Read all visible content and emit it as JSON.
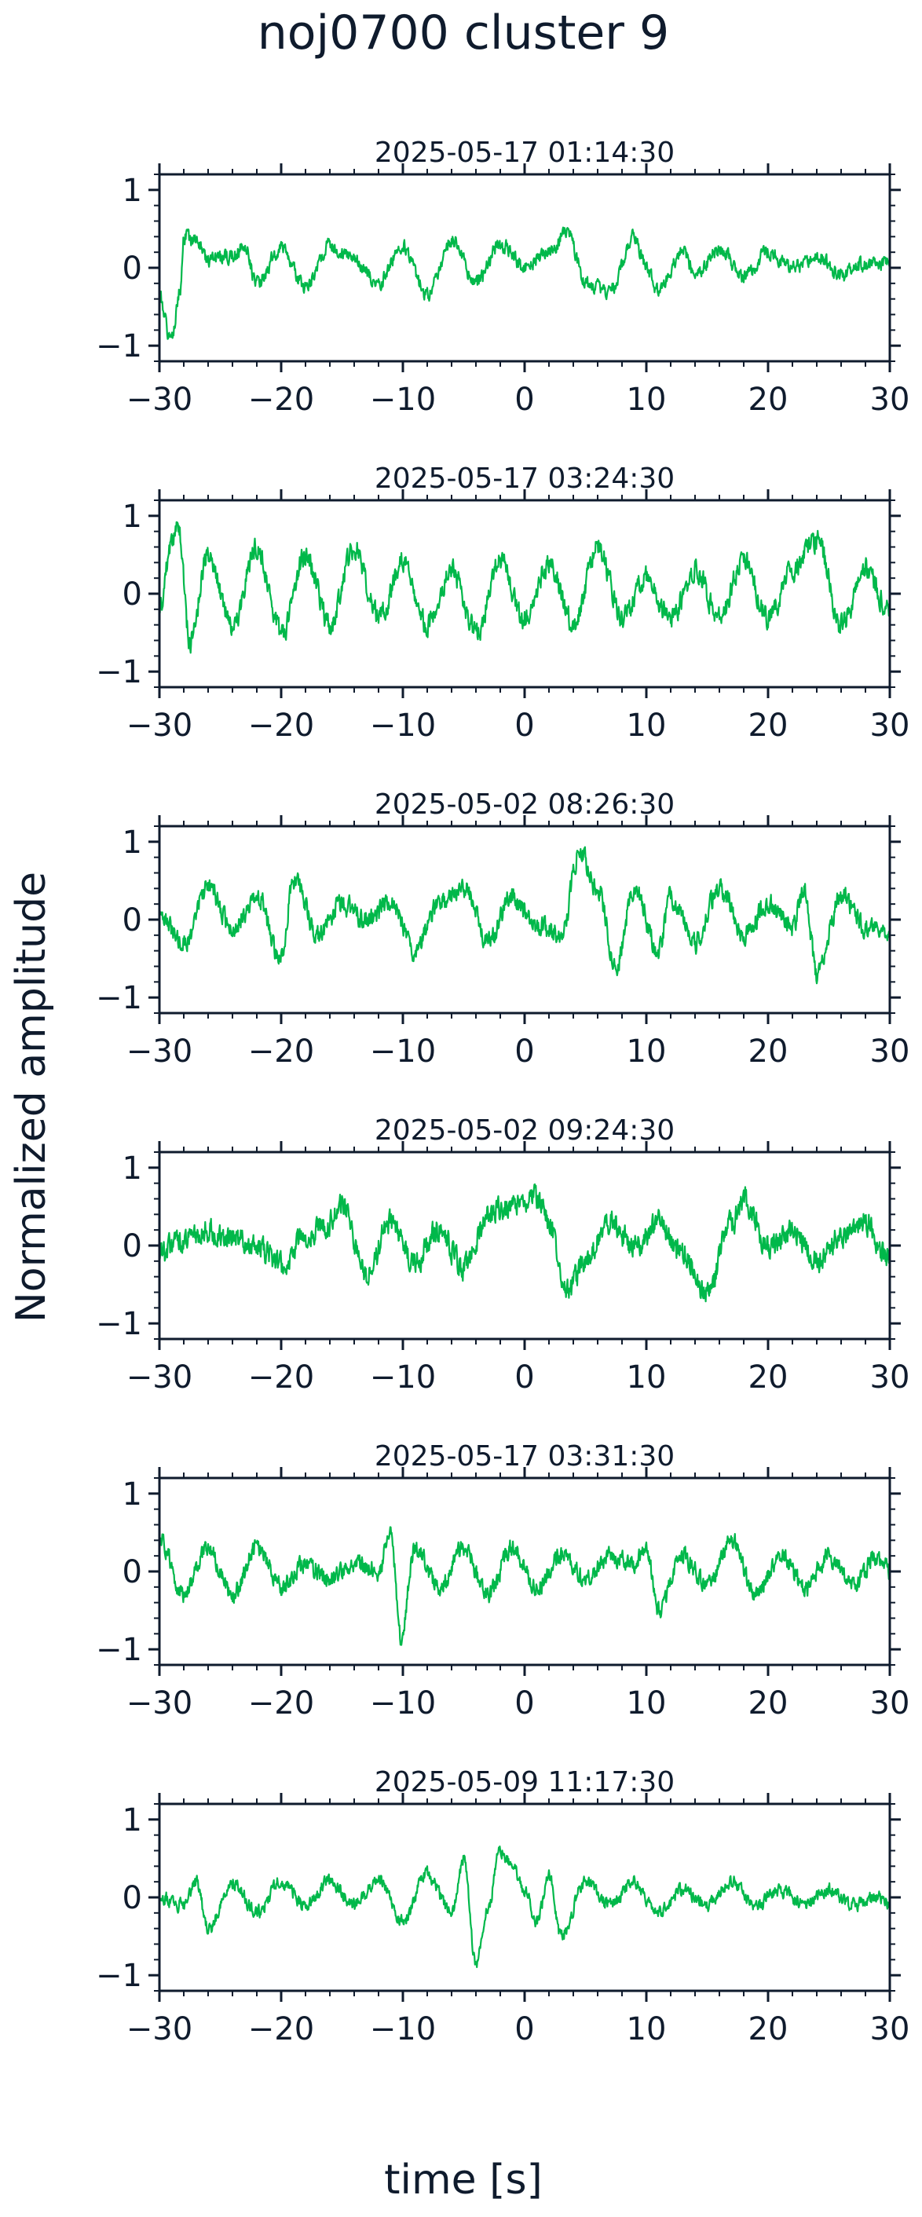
{
  "figure": {
    "title": "noj0700 cluster 9",
    "xlabel": "time [s]",
    "ylabel": "Normalized amplitude"
  },
  "colors": {
    "trace": "#00b84a",
    "axes": "#0f1b2d"
  },
  "chart_data": [
    {
      "type": "line",
      "title": "2025-05-17 01:14:30",
      "xlim": [
        -30,
        30
      ],
      "ylim": [
        -1.2,
        1.2
      ],
      "xticks": [
        -30,
        -20,
        -10,
        0,
        10,
        20,
        30
      ],
      "yticks": [
        -1,
        0,
        1
      ],
      "envelope": [
        [
          -30,
          -0.4
        ],
        [
          -29,
          -0.95
        ],
        [
          -28.3,
          -0.3
        ],
        [
          -28,
          0.4
        ],
        [
          -27,
          0.35
        ],
        [
          -26,
          0.1
        ],
        [
          -24,
          0.15
        ],
        [
          -23,
          0.3
        ],
        [
          -22,
          -0.2
        ],
        [
          -20,
          0.25
        ],
        [
          -18,
          -0.25
        ],
        [
          -16,
          0.3
        ],
        [
          -14,
          0.1
        ],
        [
          -12,
          -0.2
        ],
        [
          -10,
          0.3
        ],
        [
          -8,
          -0.35
        ],
        [
          -6,
          0.35
        ],
        [
          -4,
          -0.2
        ],
        [
          -2,
          0.3
        ],
        [
          0,
          0.0
        ],
        [
          2,
          0.2
        ],
        [
          3.5,
          0.45
        ],
        [
          5,
          -0.2
        ],
        [
          7,
          -0.3
        ],
        [
          9,
          0.4
        ],
        [
          10,
          0.0
        ],
        [
          11,
          -0.3
        ],
        [
          13,
          0.2
        ],
        [
          14,
          -0.1
        ],
        [
          16,
          0.25
        ],
        [
          18,
          -0.1
        ],
        [
          20,
          0.2
        ],
        [
          22,
          0.0
        ],
        [
          24,
          0.15
        ],
        [
          26,
          -0.1
        ],
        [
          28,
          0.05
        ],
        [
          30,
          0.05
        ]
      ],
      "noise": 0.14,
      "seed": 1
    },
    {
      "type": "line",
      "title": "2025-05-17 03:24:30",
      "xlim": [
        -30,
        30
      ],
      "ylim": [
        -1.2,
        1.2
      ],
      "xticks": [
        -30,
        -20,
        -10,
        0,
        10,
        20,
        30
      ],
      "yticks": [
        -1,
        0,
        1
      ],
      "envelope": [
        [
          -30,
          -0.2
        ],
        [
          -29,
          0.6
        ],
        [
          -28.5,
          0.9
        ],
        [
          -27.5,
          -0.6
        ],
        [
          -26,
          0.5
        ],
        [
          -24,
          -0.4
        ],
        [
          -22,
          0.6
        ],
        [
          -20,
          -0.5
        ],
        [
          -18,
          0.5
        ],
        [
          -16,
          -0.4
        ],
        [
          -14,
          0.6
        ],
        [
          -12,
          -0.3
        ],
        [
          -10,
          0.4
        ],
        [
          -8,
          -0.4
        ],
        [
          -6,
          0.3
        ],
        [
          -4,
          -0.5
        ],
        [
          -2,
          0.4
        ],
        [
          0,
          -0.3
        ],
        [
          2,
          0.4
        ],
        [
          4,
          -0.4
        ],
        [
          6,
          0.6
        ],
        [
          8,
          -0.3
        ],
        [
          10,
          0.2
        ],
        [
          12,
          -0.3
        ],
        [
          14,
          0.3
        ],
        [
          16,
          -0.3
        ],
        [
          18,
          0.4
        ],
        [
          20,
          -0.3
        ],
        [
          22,
          0.3
        ],
        [
          24,
          0.7
        ],
        [
          26,
          -0.4
        ],
        [
          28,
          0.3
        ],
        [
          30,
          -0.2
        ]
      ],
      "noise": 0.22,
      "seed": 2
    },
    {
      "type": "line",
      "title": "2025-05-02 08:26:30",
      "xlim": [
        -30,
        30
      ],
      "ylim": [
        -1.2,
        1.2
      ],
      "xticks": [
        -30,
        -20,
        -10,
        0,
        10,
        20,
        30
      ],
      "yticks": [
        -1,
        0,
        1
      ],
      "envelope": [
        [
          -30,
          0.0
        ],
        [
          -28,
          -0.3
        ],
        [
          -26,
          0.4
        ],
        [
          -24,
          -0.1
        ],
        [
          -22,
          0.3
        ],
        [
          -20,
          -0.5
        ],
        [
          -19,
          0.5
        ],
        [
          -17,
          -0.2
        ],
        [
          -15,
          0.2
        ],
        [
          -13,
          0.0
        ],
        [
          -11,
          0.2
        ],
        [
          -9,
          -0.4
        ],
        [
          -7,
          0.2
        ],
        [
          -5,
          0.4
        ],
        [
          -3,
          -0.3
        ],
        [
          -1,
          0.3
        ],
        [
          1,
          -0.1
        ],
        [
          3,
          -0.2
        ],
        [
          4.5,
          0.85
        ],
        [
          6,
          0.4
        ],
        [
          7.5,
          -0.6
        ],
        [
          9,
          0.4
        ],
        [
          11,
          -0.4
        ],
        [
          12,
          0.3
        ],
        [
          14,
          -0.3
        ],
        [
          16,
          0.4
        ],
        [
          18,
          -0.2
        ],
        [
          20,
          0.2
        ],
        [
          22,
          -0.1
        ],
        [
          23,
          0.4
        ],
        [
          24,
          -0.7
        ],
        [
          26,
          0.3
        ],
        [
          28,
          -0.1
        ],
        [
          30,
          -0.2
        ]
      ],
      "noise": 0.2,
      "seed": 3
    },
    {
      "type": "line",
      "title": "2025-05-02 09:24:30",
      "xlim": [
        -30,
        30
      ],
      "ylim": [
        -1.2,
        1.2
      ],
      "xticks": [
        -30,
        -20,
        -10,
        0,
        10,
        20,
        30
      ],
      "yticks": [
        -1,
        0,
        1
      ],
      "envelope": [
        [
          -30,
          -0.1
        ],
        [
          -28,
          0.1
        ],
        [
          -26,
          0.2
        ],
        [
          -24,
          0.1
        ],
        [
          -22,
          0.0
        ],
        [
          -20,
          -0.25
        ],
        [
          -18,
          0.1
        ],
        [
          -16,
          0.3
        ],
        [
          -15,
          0.5
        ],
        [
          -13,
          -0.4
        ],
        [
          -11,
          0.3
        ],
        [
          -9,
          -0.2
        ],
        [
          -7,
          0.2
        ],
        [
          -5,
          -0.3
        ],
        [
          -3,
          0.4
        ],
        [
          -1,
          0.5
        ],
        [
          1,
          0.6
        ],
        [
          2,
          0.3
        ],
        [
          3.5,
          -0.6
        ],
        [
          5,
          -0.2
        ],
        [
          7,
          0.3
        ],
        [
          9,
          0.0
        ],
        [
          11,
          0.3
        ],
        [
          13,
          -0.1
        ],
        [
          15,
          -0.6
        ],
        [
          17,
          0.3
        ],
        [
          18,
          0.6
        ],
        [
          20,
          0.0
        ],
        [
          22,
          0.2
        ],
        [
          24,
          -0.2
        ],
        [
          26,
          0.1
        ],
        [
          28,
          0.3
        ],
        [
          30,
          -0.2
        ]
      ],
      "noise": 0.24,
      "seed": 4
    },
    {
      "type": "line",
      "title": "2025-05-17 03:31:30",
      "xlim": [
        -30,
        30
      ],
      "ylim": [
        -1.2,
        1.2
      ],
      "xticks": [
        -30,
        -20,
        -10,
        0,
        10,
        20,
        30
      ],
      "yticks": [
        -1,
        0,
        1
      ],
      "envelope": [
        [
          -30,
          0.4
        ],
        [
          -28,
          -0.3
        ],
        [
          -26,
          0.3
        ],
        [
          -24,
          -0.3
        ],
        [
          -22,
          0.3
        ],
        [
          -20,
          -0.2
        ],
        [
          -18,
          0.1
        ],
        [
          -16,
          -0.1
        ],
        [
          -14,
          0.1
        ],
        [
          -12,
          0.0
        ],
        [
          -11,
          0.5
        ],
        [
          -10.2,
          -0.85
        ],
        [
          -9,
          0.3
        ],
        [
          -7,
          -0.2
        ],
        [
          -5,
          0.3
        ],
        [
          -3,
          -0.3
        ],
        [
          -1,
          0.3
        ],
        [
          1,
          -0.2
        ],
        [
          3,
          0.2
        ],
        [
          5,
          -0.1
        ],
        [
          7,
          0.2
        ],
        [
          9,
          0.1
        ],
        [
          10,
          0.3
        ],
        [
          11,
          -0.5
        ],
        [
          13,
          0.2
        ],
        [
          15,
          -0.2
        ],
        [
          17,
          0.4
        ],
        [
          19,
          -0.3
        ],
        [
          21,
          0.2
        ],
        [
          23,
          -0.2
        ],
        [
          25,
          0.2
        ],
        [
          27,
          -0.2
        ],
        [
          29,
          0.2
        ],
        [
          30,
          0.0
        ]
      ],
      "noise": 0.18,
      "seed": 5
    },
    {
      "type": "line",
      "title": "2025-05-09 11:17:30",
      "xlim": [
        -30,
        30
      ],
      "ylim": [
        -1.2,
        1.2
      ],
      "xticks": [
        -30,
        -20,
        -10,
        0,
        10,
        20,
        30
      ],
      "yticks": [
        -1,
        0,
        1
      ],
      "envelope": [
        [
          -30,
          0.0
        ],
        [
          -28,
          -0.1
        ],
        [
          -27,
          0.2
        ],
        [
          -26,
          -0.4
        ],
        [
          -24,
          0.2
        ],
        [
          -22,
          -0.2
        ],
        [
          -20,
          0.2
        ],
        [
          -18,
          -0.1
        ],
        [
          -16,
          0.2
        ],
        [
          -14,
          -0.1
        ],
        [
          -12,
          0.2
        ],
        [
          -10,
          -0.3
        ],
        [
          -8,
          0.3
        ],
        [
          -6,
          -0.2
        ],
        [
          -5,
          0.5
        ],
        [
          -4,
          -0.85
        ],
        [
          -3,
          -0.1
        ],
        [
          -2,
          0.6
        ],
        [
          -1,
          0.4
        ],
        [
          0,
          0.1
        ],
        [
          1,
          -0.3
        ],
        [
          2,
          0.3
        ],
        [
          3,
          -0.5
        ],
        [
          5,
          0.2
        ],
        [
          7,
          -0.1
        ],
        [
          9,
          0.2
        ],
        [
          11,
          -0.2
        ],
        [
          13,
          0.1
        ],
        [
          15,
          -0.1
        ],
        [
          17,
          0.2
        ],
        [
          19,
          -0.1
        ],
        [
          21,
          0.1
        ],
        [
          23,
          -0.1
        ],
        [
          25,
          0.1
        ],
        [
          27,
          -0.1
        ],
        [
          29,
          0.0
        ],
        [
          30,
          -0.1
        ]
      ],
      "noise": 0.13,
      "seed": 6
    }
  ]
}
